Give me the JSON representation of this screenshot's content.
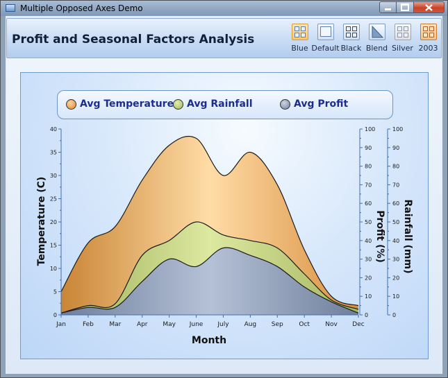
{
  "window": {
    "title": "Multiple Opposed Axes Demo"
  },
  "header": {
    "title": "Profit and Seasonal Factors Analysis"
  },
  "themes": [
    {
      "label": "Blue",
      "selected": true
    },
    {
      "label": "Default",
      "selected": false
    },
    {
      "label": "Black",
      "selected": false
    },
    {
      "label": "Blend",
      "selected": false
    },
    {
      "label": "Silver",
      "selected": false
    },
    {
      "label": "2003",
      "selected": false
    }
  ],
  "colors": {
    "temperature": "#e9a24f",
    "rainfall": "#b8c86e",
    "profit": "#8a9ab6",
    "axis": "#3f6fae",
    "legend_text": "#1c2d8f"
  },
  "chart_data": {
    "type": "area",
    "categories": [
      "Jan",
      "Feb",
      "Mar",
      "Apr",
      "May",
      "June",
      "July",
      "Aug",
      "Sep",
      "Oct",
      "Nov",
      "Dec"
    ],
    "xlabel": "Month",
    "legend": {
      "placement": "top"
    },
    "axes": {
      "left": {
        "label": "Temperature (C)",
        "range": [
          0,
          40
        ],
        "ticks": [
          0,
          5,
          10,
          15,
          20,
          25,
          30,
          35,
          40
        ]
      },
      "right_inner": {
        "label": "Profit (%)",
        "range": [
          0,
          100
        ],
        "ticks": [
          0,
          10,
          20,
          30,
          40,
          50,
          60,
          70,
          80,
          90,
          100
        ]
      },
      "right_outer": {
        "label": "Rainfall (mm)",
        "range": [
          0,
          100
        ],
        "ticks": [
          0,
          10,
          20,
          30,
          40,
          50,
          60,
          70,
          80,
          90,
          100
        ]
      }
    },
    "series": [
      {
        "name": "Avg Temperature",
        "axis": "left",
        "values": [
          5,
          15.5,
          19,
          29,
          36.5,
          38,
          30,
          35,
          28,
          14,
          4,
          2
        ]
      },
      {
        "name": "Avg Rainfall",
        "axis": "right_outer",
        "values": [
          1,
          5,
          6,
          32,
          40,
          50,
          43,
          40,
          36,
          22,
          8,
          3
        ]
      },
      {
        "name": "Avg Profit",
        "axis": "right_inner",
        "values": [
          1,
          4,
          4,
          18,
          30,
          26,
          36,
          32,
          26,
          15,
          7,
          1
        ]
      }
    ]
  }
}
